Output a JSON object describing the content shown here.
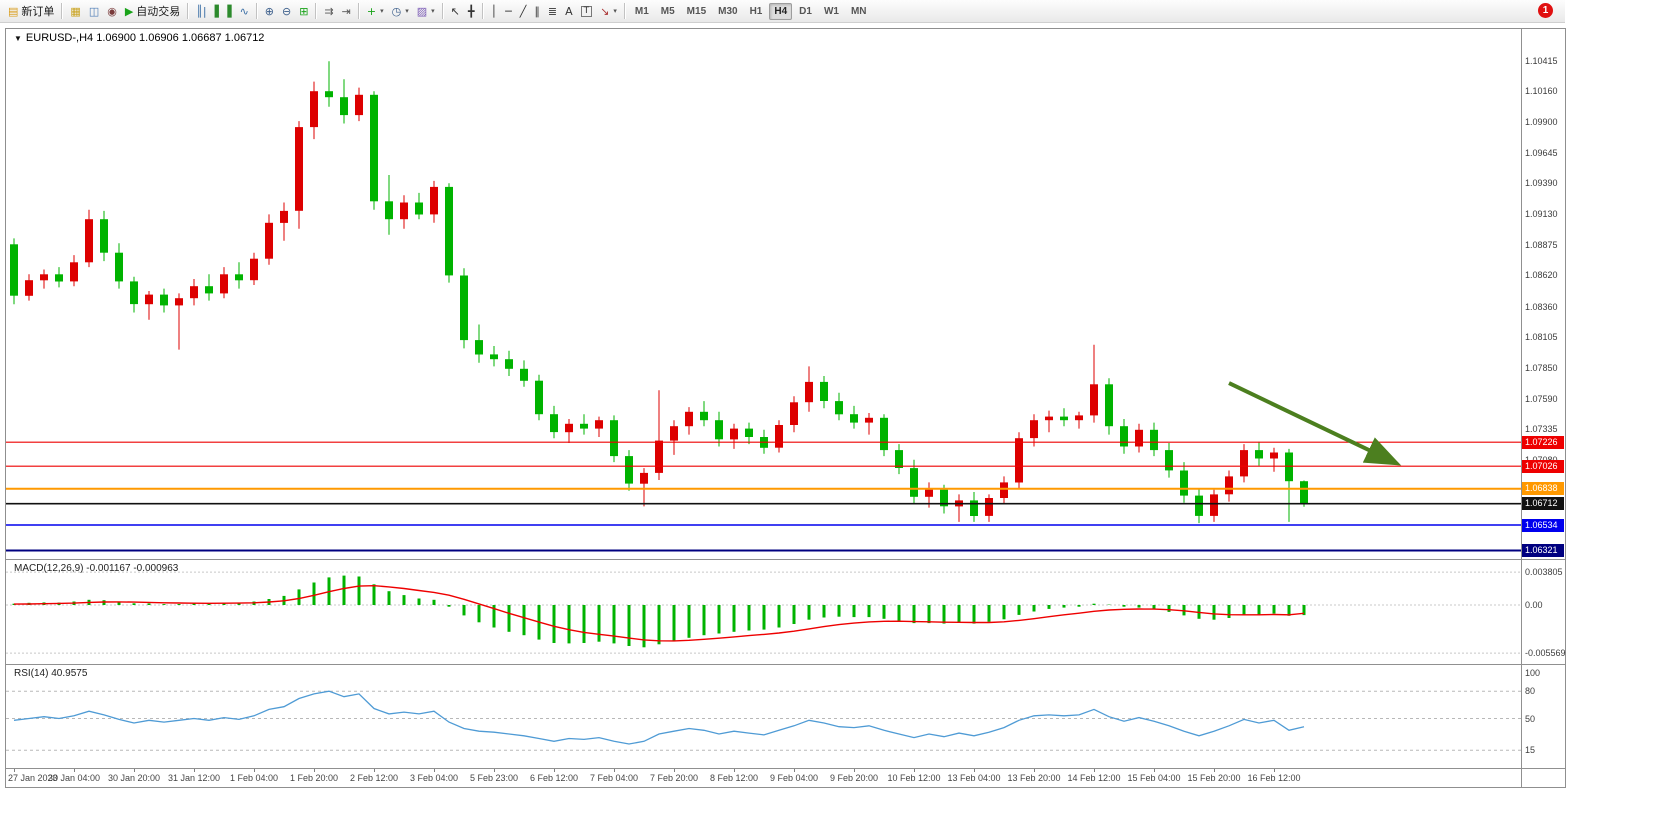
{
  "toolbar": {
    "notification_badge": "1",
    "active_timeframe": "H4",
    "timeframes": [
      "M1",
      "M5",
      "M15",
      "M30",
      "H1",
      "H4",
      "D1",
      "W1",
      "MN"
    ],
    "items": [
      {
        "name": "new-order",
        "icon": "new-order-icon",
        "glyph": "▤",
        "color": "#d89c1a",
        "label": "新订单"
      },
      {
        "sep": true
      },
      {
        "name": "chart-window",
        "icon": "bar-chart-gold-icon",
        "glyph": "▦",
        "color": "#c9a11b"
      },
      {
        "name": "profiles",
        "icon": "window-layout-icon",
        "glyph": "◫",
        "color": "#4a7ab5"
      },
      {
        "name": "data-center",
        "icon": "circle-icon",
        "glyph": "◉",
        "color": "#7a3b3b"
      },
      {
        "name": "auto-trading",
        "icon": "play-icon",
        "glyph": "▶",
        "color": "#19a319",
        "label": "自动交易"
      },
      {
        "sep": true
      },
      {
        "name": "bar-chart-mode",
        "icon": "ohlc-bars-icon",
        "glyph": "║|",
        "color": "#3a6ea5"
      },
      {
        "name": "candlestick-mode",
        "icon": "candlestick-icon",
        "glyph": "▌▐",
        "color": "#2c8a2c"
      },
      {
        "name": "line-chart-mode",
        "icon": "line-chart-icon",
        "glyph": "∿",
        "color": "#3a6ea5"
      },
      {
        "sep": true
      },
      {
        "name": "zoom-in",
        "icon": "zoom-in-icon",
        "glyph": "⊕",
        "color": "#3a5d8a"
      },
      {
        "name": "zoom-out",
        "icon": "zoom-out-icon",
        "glyph": "⊖",
        "color": "#3a5d8a"
      },
      {
        "name": "tile-windows",
        "icon": "tile-windows-icon",
        "glyph": "⊞",
        "color": "#19a319"
      },
      {
        "sep": true
      },
      {
        "name": "auto-scroll",
        "icon": "auto-scroll-icon",
        "glyph": "⇉",
        "color": "#555555"
      },
      {
        "name": "chart-shift",
        "icon": "chart-shift-icon",
        "glyph": "⇥",
        "color": "#555555"
      },
      {
        "sep": true
      },
      {
        "name": "indicators",
        "icon": "indicators-icon",
        "glyph": "+",
        "color": "#19a319",
        "caret": true
      },
      {
        "name": "periods",
        "icon": "clock-icon",
        "glyph": "◷",
        "color": "#3a5d8a",
        "caret": true
      },
      {
        "name": "templates",
        "icon": "template-icon",
        "glyph": "▨",
        "color": "#7a5ab5",
        "caret": true
      },
      {
        "sep": true
      },
      {
        "name": "cursor",
        "icon": "cursor-icon",
        "glyph": "↖",
        "color": "#333333"
      },
      {
        "name": "crosshair",
        "icon": "crosshair-icon",
        "glyph": "╋",
        "color": "#333333"
      },
      {
        "sep": true
      },
      {
        "name": "vertical-line",
        "icon": "vertical-line-icon",
        "glyph": "│",
        "color": "#333333"
      },
      {
        "name": "horizontal-line",
        "icon": "horizontal-line-icon",
        "glyph": "─",
        "color": "#333333"
      },
      {
        "name": "trendline",
        "icon": "trendline-icon",
        "glyph": "╱",
        "color": "#333333"
      },
      {
        "name": "equidistant-channel",
        "icon": "channel-icon",
        "glyph": "∥",
        "color": "#333333"
      },
      {
        "name": "fibonacci",
        "icon": "fibonacci-icon",
        "glyph": "≣",
        "color": "#333333"
      },
      {
        "name": "text",
        "icon": "text-icon",
        "glyph": "A",
        "color": "#333333"
      },
      {
        "name": "text-label",
        "icon": "text-label-icon",
        "glyph": "T",
        "color": "#333333",
        "boxed": true
      },
      {
        "name": "arrow-objects",
        "icon": "arrow-objects-icon",
        "glyph": "↘",
        "color": "#aa3333",
        "caret": true
      },
      {
        "sep": true
      }
    ]
  },
  "chart": {
    "title_text": "EURUSD-,H4 1.06900 1.06906 1.06687 1.06712",
    "macd_label": "MACD(12,26,9) -0.001167 -0.000963",
    "rsi_label": "RSI(14) 40.9575"
  },
  "chart_data": {
    "type": "candlestick",
    "symbol": "EURUSD-",
    "timeframe": "H4",
    "current_candle": {
      "open": 1.069,
      "high": 1.06906,
      "low": 1.06687,
      "close": 1.06712
    },
    "colors": {
      "bull": "#dd0000",
      "bear": "#00b300",
      "background": "#ffffff",
      "macd_hist": "#00b300",
      "macd_signal": "#ee0000",
      "rsi_line": "#4f9bd5"
    },
    "candles": [
      [
        1.0888,
        1.0893,
        1.0838,
        1.0845
      ],
      [
        1.0845,
        1.0863,
        1.0841,
        1.0858
      ],
      [
        1.0858,
        1.0867,
        1.0851,
        1.0863
      ],
      [
        1.0863,
        1.0869,
        1.0852,
        1.0857
      ],
      [
        1.0857,
        1.0879,
        1.0853,
        1.0873
      ],
      [
        1.0873,
        1.0917,
        1.0869,
        1.0909
      ],
      [
        1.0909,
        1.0916,
        1.0874,
        1.0881
      ],
      [
        1.0881,
        1.0889,
        1.0851,
        1.0857
      ],
      [
        1.0857,
        1.0861,
        1.0831,
        1.0838
      ],
      [
        1.0838,
        1.0849,
        1.0825,
        1.0846
      ],
      [
        1.0846,
        1.0851,
        1.0831,
        1.0837
      ],
      [
        1.0837,
        1.0847,
        1.08,
        1.0843
      ],
      [
        1.0843,
        1.0859,
        1.0837,
        1.0853
      ],
      [
        1.0853,
        1.0863,
        1.0841,
        1.0847
      ],
      [
        1.0847,
        1.0869,
        1.0843,
        1.0863
      ],
      [
        1.0863,
        1.0873,
        1.0851,
        1.0858
      ],
      [
        1.0858,
        1.0881,
        1.0854,
        1.0876
      ],
      [
        1.0876,
        1.0913,
        1.0871,
        1.0906
      ],
      [
        1.0906,
        1.0923,
        1.0891,
        1.0916
      ],
      [
        1.0916,
        1.0991,
        1.0901,
        1.0986
      ],
      [
        1.0986,
        1.1024,
        1.0976,
        1.1016
      ],
      [
        1.1016,
        1.1041,
        1.1003,
        1.1011
      ],
      [
        1.1011,
        1.1026,
        1.0989,
        1.0996
      ],
      [
        1.0996,
        1.1019,
        1.0991,
        1.1013
      ],
      [
        1.1013,
        1.1016,
        1.0917,
        1.0924
      ],
      [
        1.0924,
        1.0946,
        1.0896,
        1.0909
      ],
      [
        1.0909,
        1.0929,
        1.0901,
        1.0923
      ],
      [
        1.0923,
        1.0931,
        1.0909,
        1.0913
      ],
      [
        1.0913,
        1.0941,
        1.0906,
        1.0936
      ],
      [
        1.0936,
        1.0939,
        1.0856,
        1.0862
      ],
      [
        1.0862,
        1.0868,
        1.0801,
        1.0808
      ],
      [
        1.0808,
        1.0821,
        1.0789,
        1.0796
      ],
      [
        1.0796,
        1.0803,
        1.0786,
        1.0792
      ],
      [
        1.0792,
        1.0799,
        1.0778,
        1.0784
      ],
      [
        1.0784,
        1.0791,
        1.0769,
        1.0774
      ],
      [
        1.0774,
        1.0779,
        1.0741,
        1.0746
      ],
      [
        1.0746,
        1.0753,
        1.0726,
        1.0731
      ],
      [
        1.0731,
        1.0742,
        1.0722,
        1.0738
      ],
      [
        1.0738,
        1.0746,
        1.0729,
        1.0734
      ],
      [
        1.0734,
        1.0744,
        1.0727,
        1.0741
      ],
      [
        1.0741,
        1.0745,
        1.0706,
        1.0711
      ],
      [
        1.0711,
        1.0716,
        1.0682,
        1.0688
      ],
      [
        1.0688,
        1.0701,
        1.0669,
        1.0697
      ],
      [
        1.0697,
        1.0766,
        1.0691,
        1.0724
      ],
      [
        1.0724,
        1.0741,
        1.0712,
        1.0736
      ],
      [
        1.0736,
        1.0752,
        1.0729,
        1.0748
      ],
      [
        1.0748,
        1.0757,
        1.0736,
        1.0741
      ],
      [
        1.0741,
        1.0748,
        1.0719,
        1.0725
      ],
      [
        1.0725,
        1.0738,
        1.0717,
        1.0734
      ],
      [
        1.0734,
        1.0739,
        1.0721,
        1.0727
      ],
      [
        1.0727,
        1.0733,
        1.0713,
        1.0718
      ],
      [
        1.0718,
        1.0741,
        1.0714,
        1.0737
      ],
      [
        1.0737,
        1.0761,
        1.0731,
        1.0756
      ],
      [
        1.0756,
        1.0786,
        1.0748,
        1.0773
      ],
      [
        1.0773,
        1.0778,
        1.0751,
        1.0757
      ],
      [
        1.0757,
        1.0764,
        1.0741,
        1.0746
      ],
      [
        1.0746,
        1.0753,
        1.0734,
        1.0739
      ],
      [
        1.0739,
        1.0747,
        1.0729,
        1.0743
      ],
      [
        1.0743,
        1.0746,
        1.0711,
        1.0716
      ],
      [
        1.0716,
        1.0721,
        1.0696,
        1.0701
      ],
      [
        1.0701,
        1.0708,
        1.0671,
        1.0677
      ],
      [
        1.0677,
        1.0689,
        1.0668,
        1.0683
      ],
      [
        1.0683,
        1.0687,
        1.0663,
        1.0669
      ],
      [
        1.0669,
        1.0679,
        1.0656,
        1.0674
      ],
      [
        1.0674,
        1.0681,
        1.0656,
        1.0661
      ],
      [
        1.0661,
        1.0679,
        1.0656,
        1.0676
      ],
      [
        1.0676,
        1.0694,
        1.0671,
        1.0689
      ],
      [
        1.0689,
        1.0731,
        1.0684,
        1.0726
      ],
      [
        1.0726,
        1.0746,
        1.0719,
        1.0741
      ],
      [
        1.0741,
        1.0749,
        1.0731,
        1.0744
      ],
      [
        1.0744,
        1.0751,
        1.0736,
        1.0741
      ],
      [
        1.0741,
        1.0748,
        1.0734,
        1.0745
      ],
      [
        1.0745,
        1.0804,
        1.0739,
        1.0771
      ],
      [
        1.0771,
        1.0776,
        1.0729,
        1.0736
      ],
      [
        1.0736,
        1.0742,
        1.0713,
        1.0719
      ],
      [
        1.0719,
        1.0738,
        1.0714,
        1.0733
      ],
      [
        1.0733,
        1.0739,
        1.0711,
        1.0716
      ],
      [
        1.0716,
        1.0722,
        1.0693,
        1.0699
      ],
      [
        1.0699,
        1.0706,
        1.0672,
        1.0678
      ],
      [
        1.0678,
        1.0684,
        1.0655,
        1.0661
      ],
      [
        1.0661,
        1.0683,
        1.0656,
        1.0679
      ],
      [
        1.0679,
        1.0699,
        1.0673,
        1.0694
      ],
      [
        1.0694,
        1.0721,
        1.0689,
        1.0716
      ],
      [
        1.0716,
        1.0723,
        1.0703,
        1.0709
      ],
      [
        1.0709,
        1.0718,
        1.0698,
        1.0714
      ],
      [
        1.0714,
        1.0717,
        1.0656,
        1.069
      ],
      [
        1.069,
        1.06906,
        1.06687,
        1.06712
      ]
    ],
    "time_labels": [
      "27 Jan 2023",
      "30 Jan 04:00",
      "30 Jan 20:00",
      "31 Jan 12:00",
      "1 Feb 04:00",
      "1 Feb 20:00",
      "2 Feb 12:00",
      "3 Feb 04:00",
      "5 Feb 23:00",
      "6 Feb 12:00",
      "7 Feb 04:00",
      "7 Feb 20:00",
      "8 Feb 12:00",
      "9 Feb 04:00",
      "9 Feb 20:00",
      "10 Feb 12:00",
      "13 Feb 04:00",
      "13 Feb 20:00",
      "14 Feb 12:00",
      "15 Feb 04:00",
      "15 Feb 20:00",
      "16 Feb 12:00"
    ],
    "price_axis_labels": [
      "1.10415",
      "1.10160",
      "1.09900",
      "1.09645",
      "1.09390",
      "1.09130",
      "1.08875",
      "1.08620",
      "1.08360",
      "1.08105",
      "1.07850",
      "1.07590",
      "1.07335",
      "1.07080"
    ],
    "levels": [
      {
        "price": 1.07226,
        "label": "1.07226",
        "color": "#ee0000",
        "width": 1.2,
        "role": "resistance-line"
      },
      {
        "price": 1.07026,
        "label": "1.07026",
        "color": "#ee0000",
        "width": 1.2,
        "role": "resistance-line"
      },
      {
        "price": 1.06838,
        "label": "1.06838",
        "color": "#ff9900",
        "width": 2,
        "role": "support-line"
      },
      {
        "price": 1.06712,
        "label": "1.06712",
        "color": "#111111",
        "width": 1.6,
        "role": "current-price"
      },
      {
        "price": 1.06534,
        "label": "1.06534",
        "color": "#0000ee",
        "width": 1.6,
        "role": "support-line"
      },
      {
        "price": 1.06321,
        "label": "1.06321",
        "color": "#000080",
        "width": 2,
        "role": "support-line"
      }
    ],
    "macd": {
      "params": "12,26,9",
      "main_value": -0.001167,
      "signal_value": -0.000963,
      "histogram": [
        0.00015,
        0.00025,
        0.0003,
        0.00028,
        0.0004,
        0.0006,
        0.00055,
        0.0004,
        0.0002,
        0.00018,
        0.0001,
        0.00012,
        0.00018,
        0.00016,
        0.00025,
        0.00028,
        0.0004,
        0.0007,
        0.00105,
        0.0018,
        0.0026,
        0.0032,
        0.0034,
        0.0033,
        0.0024,
        0.0016,
        0.00115,
        0.00075,
        0.0006,
        -0.0002,
        -0.0012,
        -0.002,
        -0.0026,
        -0.0031,
        -0.0035,
        -0.004,
        -0.0044,
        -0.00445,
        -0.0044,
        -0.00425,
        -0.00445,
        -0.00475,
        -0.0049,
        -0.00455,
        -0.0042,
        -0.0038,
        -0.0035,
        -0.0033,
        -0.0031,
        -0.00295,
        -0.00285,
        -0.0026,
        -0.0022,
        -0.0017,
        -0.00145,
        -0.00135,
        -0.0014,
        -0.0014,
        -0.0016,
        -0.0018,
        -0.0021,
        -0.0021,
        -0.00215,
        -0.00205,
        -0.00215,
        -0.00195,
        -0.00165,
        -0.00115,
        -0.00075,
        -0.00045,
        -0.0003,
        -0.0002,
        0.00015,
        5e-05,
        -0.0002,
        -0.0003,
        -0.0005,
        -0.0008,
        -0.0012,
        -0.0016,
        -0.0017,
        -0.0015,
        -0.0012,
        -0.0011,
        -0.001,
        -0.00125,
        -0.001167
      ],
      "signal": [
        0.0001,
        0.00012,
        0.00015,
        0.00018,
        0.00022,
        0.0003,
        0.00035,
        0.00036,
        0.00033,
        0.0003,
        0.00026,
        0.00023,
        0.00021,
        0.0002,
        0.00021,
        0.00022,
        0.00026,
        0.00035,
        0.00049,
        0.00075,
        0.00112,
        0.00154,
        0.00191,
        0.00219,
        0.00223,
        0.0021,
        0.00191,
        0.00168,
        0.00146,
        0.00113,
        0.00066,
        0.00013,
        -0.00042,
        -0.00096,
        -0.00147,
        -0.00198,
        -0.00246,
        -0.00286,
        -0.00317,
        -0.00339,
        -0.0036,
        -0.00383,
        -0.00404,
        -0.00414,
        -0.00415,
        -0.00408,
        -0.00397,
        -0.00384,
        -0.00369,
        -0.00354,
        -0.0034,
        -0.00324,
        -0.00303,
        -0.00277,
        -0.0025,
        -0.00227,
        -0.0021,
        -0.00196,
        -0.00189,
        -0.00187,
        -0.00192,
        -0.00195,
        -0.00199,
        -0.002,
        -0.00203,
        -0.00202,
        -0.00194,
        -0.00178,
        -0.00158,
        -0.00135,
        -0.00114,
        -0.00095,
        -0.00073,
        -0.00058,
        -0.0005,
        -0.00046,
        -0.00047,
        -0.00054,
        -0.00067,
        -0.00086,
        -0.00103,
        -0.00112,
        -0.00114,
        -0.00113,
        -0.0011,
        -0.00113,
        -0.000963
      ]
    },
    "macd_axis": [
      {
        "label": "0.003805",
        "value": 0.003805
      },
      {
        "label": "0.00",
        "value": 0
      },
      {
        "label": "-0.005569",
        "value": -0.005569
      }
    ],
    "rsi": {
      "period": 14,
      "value": 40.9575,
      "values": [
        48,
        50,
        52,
        50,
        53,
        58,
        54,
        49,
        45,
        48,
        46,
        48,
        50,
        48,
        51,
        49,
        53,
        60,
        63,
        72,
        77,
        80,
        74,
        77,
        61,
        55,
        57,
        55,
        58,
        46,
        39,
        36,
        35,
        33,
        31,
        28,
        25,
        28,
        27,
        29,
        25,
        22,
        25,
        33,
        36,
        39,
        37,
        33,
        36,
        34,
        32,
        37,
        42,
        48,
        45,
        41,
        40,
        42,
        37,
        33,
        29,
        33,
        30,
        34,
        31,
        35,
        40,
        48,
        53,
        54,
        53,
        54,
        60,
        52,
        47,
        51,
        47,
        42,
        36,
        31,
        36,
        42,
        49,
        45,
        48,
        37,
        40.96
      ]
    },
    "rsi_axis": [
      {
        "label": "100",
        "value": 100
      },
      {
        "label": "80",
        "value": 80,
        "dashed": true
      },
      {
        "label": "50",
        "value": 50,
        "dashed": true
      },
      {
        "label": "15",
        "value": 15,
        "dashed": true
      }
    ],
    "annotation": {
      "type": "trend-arrow",
      "color": "#4c7f1f",
      "x1_candle": 81,
      "y1_price": 1.0772,
      "x2_candle": 92,
      "y2_price": 1.0706
    }
  }
}
